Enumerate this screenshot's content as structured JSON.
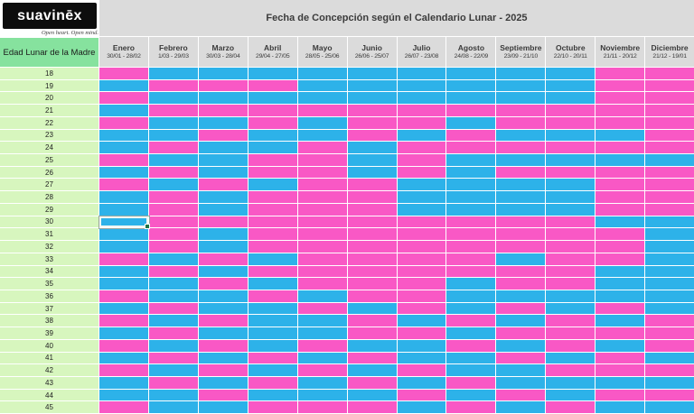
{
  "logo": {
    "brand": "suavinēx",
    "tagline": "Open heart. Open mind."
  },
  "header": {
    "title": "Fecha de Concepción según el Calendario Lunar - 2025",
    "row_header": "Edad Lunar de la Madre"
  },
  "colors": {
    "girl_pink": "#F958C5",
    "boy_blue": "#2DB2E9",
    "age_green": "#D7F6BE",
    "header_green": "#86E29E",
    "band_gray": "#DBDBDB"
  },
  "months": [
    {
      "name": "Enero",
      "range": "30/01 - 28/02"
    },
    {
      "name": "Febrero",
      "range": "1/03 - 29/03"
    },
    {
      "name": "Marzo",
      "range": "30/03 - 28/04"
    },
    {
      "name": "Abril",
      "range": "29/04 - 27/05"
    },
    {
      "name": "Mayo",
      "range": "28/05 - 25/06"
    },
    {
      "name": "Junio",
      "range": "26/06 - 25/07"
    },
    {
      "name": "Julio",
      "range": "26/07 - 23/08"
    },
    {
      "name": "Agosto",
      "range": "24/08 - 22/09"
    },
    {
      "name": "Septiembre",
      "range": "23/09 - 21/10"
    },
    {
      "name": "Octubre",
      "range": "22/10 - 20/11"
    },
    {
      "name": "Noviembre",
      "range": "21/11 - 20/12"
    },
    {
      "name": "Diciembre",
      "range": "21/12 - 19/01"
    }
  ],
  "cell_legend": {
    "P": "girl-pink",
    "B": "boy-blue"
  },
  "rows": [
    {
      "age": 18,
      "cells": "PBBBBBBBBBPP"
    },
    {
      "age": 19,
      "cells": "BPPPBBBBBBPP"
    },
    {
      "age": 20,
      "cells": "PBBBBBBBBBPP"
    },
    {
      "age": 21,
      "cells": "BPPPPPPPPPPP"
    },
    {
      "age": 22,
      "cells": "PBBPBPPBPPPP"
    },
    {
      "age": 23,
      "cells": "BBPBBPBPBBBP"
    },
    {
      "age": 24,
      "cells": "BPBBPBPPPPPP"
    },
    {
      "age": 25,
      "cells": "PBBPPBPBBBBB"
    },
    {
      "age": 26,
      "cells": "BPBPPBPBPPPP"
    },
    {
      "age": 27,
      "cells": "PBPBPPBBBBPP"
    },
    {
      "age": 28,
      "cells": "BPBPPPBBBBPP"
    },
    {
      "age": 29,
      "cells": "BPBPPPBBBBPP"
    },
    {
      "age": 30,
      "cells": "BPPPPPPPPPBB"
    },
    {
      "age": 31,
      "cells": "BPBPPPPPPPPB"
    },
    {
      "age": 32,
      "cells": "BPBPPPPPPPPB"
    },
    {
      "age": 33,
      "cells": "PBPBPPPPBPPB"
    },
    {
      "age": 34,
      "cells": "BPBPPPPPPPBB"
    },
    {
      "age": 35,
      "cells": "BBPBPPPBPPBB"
    },
    {
      "age": 36,
      "cells": "PBBPBPPBBBBB"
    },
    {
      "age": 37,
      "cells": "BPBBPBPBPBPB"
    },
    {
      "age": 38,
      "cells": "PBPBBPBPBPBP"
    },
    {
      "age": 39,
      "cells": "BPBBBPPBPPPP"
    },
    {
      "age": 40,
      "cells": "PBPBPBBPBPBP"
    },
    {
      "age": 41,
      "cells": "BPBPBPBBPBPB"
    },
    {
      "age": 42,
      "cells": "PBPBPBPBBPPP"
    },
    {
      "age": 43,
      "cells": "BPBPBPBPBBBB"
    },
    {
      "age": 44,
      "cells": "BBPBBBPBPBPP"
    },
    {
      "age": 45,
      "cells": "PBBPPPBPBPBB"
    }
  ],
  "selected_cell": {
    "age": 30,
    "month": "Enero",
    "month_index": 0
  }
}
